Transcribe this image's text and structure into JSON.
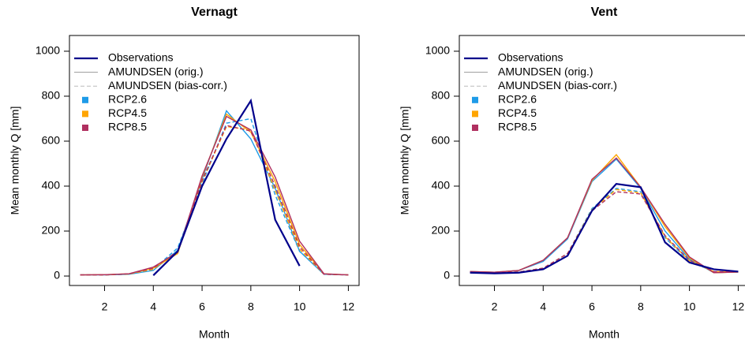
{
  "chart_data": [
    {
      "type": "line",
      "title": "Vernagt",
      "xlabel": "Month",
      "ylabel": "Mean monthly Q [mm]",
      "x": [
        1,
        2,
        3,
        4,
        5,
        6,
        7,
        8,
        9,
        10,
        11,
        12
      ],
      "xlim": [
        0.56,
        12.44
      ],
      "ylim": [
        -42,
        1070
      ],
      "xticks": [
        2,
        4,
        6,
        8,
        10,
        12
      ],
      "yticks": [
        0,
        200,
        400,
        600,
        800,
        1000
      ],
      "series": [
        {
          "name": "Observations",
          "color": "#00008b",
          "values": [
            null,
            null,
            null,
            3,
            110,
            400,
            610,
            780,
            250,
            45,
            null,
            null
          ]
        }
      ],
      "line_styles": [
        {
          "name": "AMUNDSEN (orig.)",
          "color": "#999999",
          "dash": "none"
        },
        {
          "name": "AMUNDSEN (bias-corr.)",
          "color": "#bbbbbb",
          "dash": "5 3"
        }
      ],
      "scenarios": [
        {
          "name": "RCP2.6",
          "color": "#1e9be8",
          "values": [
            [
              5,
              5,
              8,
              25,
              115,
              430,
              735,
              610,
              390,
              110,
              8,
              5
            ],
            [
              5,
              5,
              8,
              30,
              125,
              410,
              680,
              700,
              360,
              110,
              8,
              5
            ]
          ]
        },
        {
          "name": "RCP4.5",
          "color": "#ffa500",
          "values": [
            [
              5,
              6,
              10,
              35,
              100,
              440,
              720,
              640,
              420,
              140,
              10,
              5
            ],
            [
              5,
              5,
              9,
              30,
              110,
              420,
              665,
              650,
              380,
              120,
              8,
              5
            ]
          ]
        },
        {
          "name": "RCP8.5",
          "color": "#b03060",
          "values": [
            [
              5,
              6,
              10,
              40,
              105,
              445,
              710,
              650,
              440,
              155,
              10,
              5
            ],
            [
              5,
              5,
              10,
              35,
              110,
              425,
              670,
              645,
              400,
              130,
              8,
              5
            ]
          ]
        }
      ]
    },
    {
      "type": "line",
      "title": "Vent",
      "xlabel": "Month",
      "ylabel": "Mean monthly Q [mm]",
      "x": [
        1,
        2,
        3,
        4,
        5,
        6,
        7,
        8,
        9,
        10,
        11,
        12
      ],
      "xlim": [
        0.56,
        12.44
      ],
      "ylim": [
        -42,
        1070
      ],
      "xticks": [
        2,
        4,
        6,
        8,
        10,
        12
      ],
      "yticks": [
        0,
        200,
        400,
        600,
        800,
        1000
      ],
      "series": [
        {
          "name": "Observations",
          "color": "#00008b",
          "values": [
            15,
            12,
            15,
            30,
            90,
            290,
            410,
            395,
            150,
            60,
            30,
            20
          ]
        }
      ],
      "line_styles": [
        {
          "name": "AMUNDSEN (orig.)",
          "color": "#999999",
          "dash": "none"
        },
        {
          "name": "AMUNDSEN (bias-corr.)",
          "color": "#bbbbbb",
          "dash": "5 3"
        }
      ],
      "scenarios": [
        {
          "name": "RCP2.6",
          "color": "#1e9be8",
          "values": [
            [
              20,
              17,
              25,
              65,
              165,
              420,
              520,
              390,
              200,
              75,
              15,
              18
            ],
            [
              18,
              15,
              18,
              35,
              100,
              300,
              390,
              375,
              170,
              65,
              20,
              18
            ]
          ]
        },
        {
          "name": "RCP4.5",
          "color": "#ffa500",
          "values": [
            [
              20,
              17,
              25,
              70,
              170,
              425,
              540,
              395,
              220,
              80,
              15,
              18
            ],
            [
              18,
              15,
              18,
              35,
              100,
              295,
              385,
              370,
              175,
              68,
              20,
              18
            ]
          ]
        },
        {
          "name": "RCP8.5",
          "color": "#b03060",
          "values": [
            [
              20,
              17,
              25,
              70,
              170,
              430,
              525,
              395,
              230,
              85,
              15,
              18
            ],
            [
              18,
              15,
              18,
              35,
              100,
              290,
              375,
              365,
              180,
              70,
              20,
              18
            ]
          ]
        }
      ]
    }
  ]
}
